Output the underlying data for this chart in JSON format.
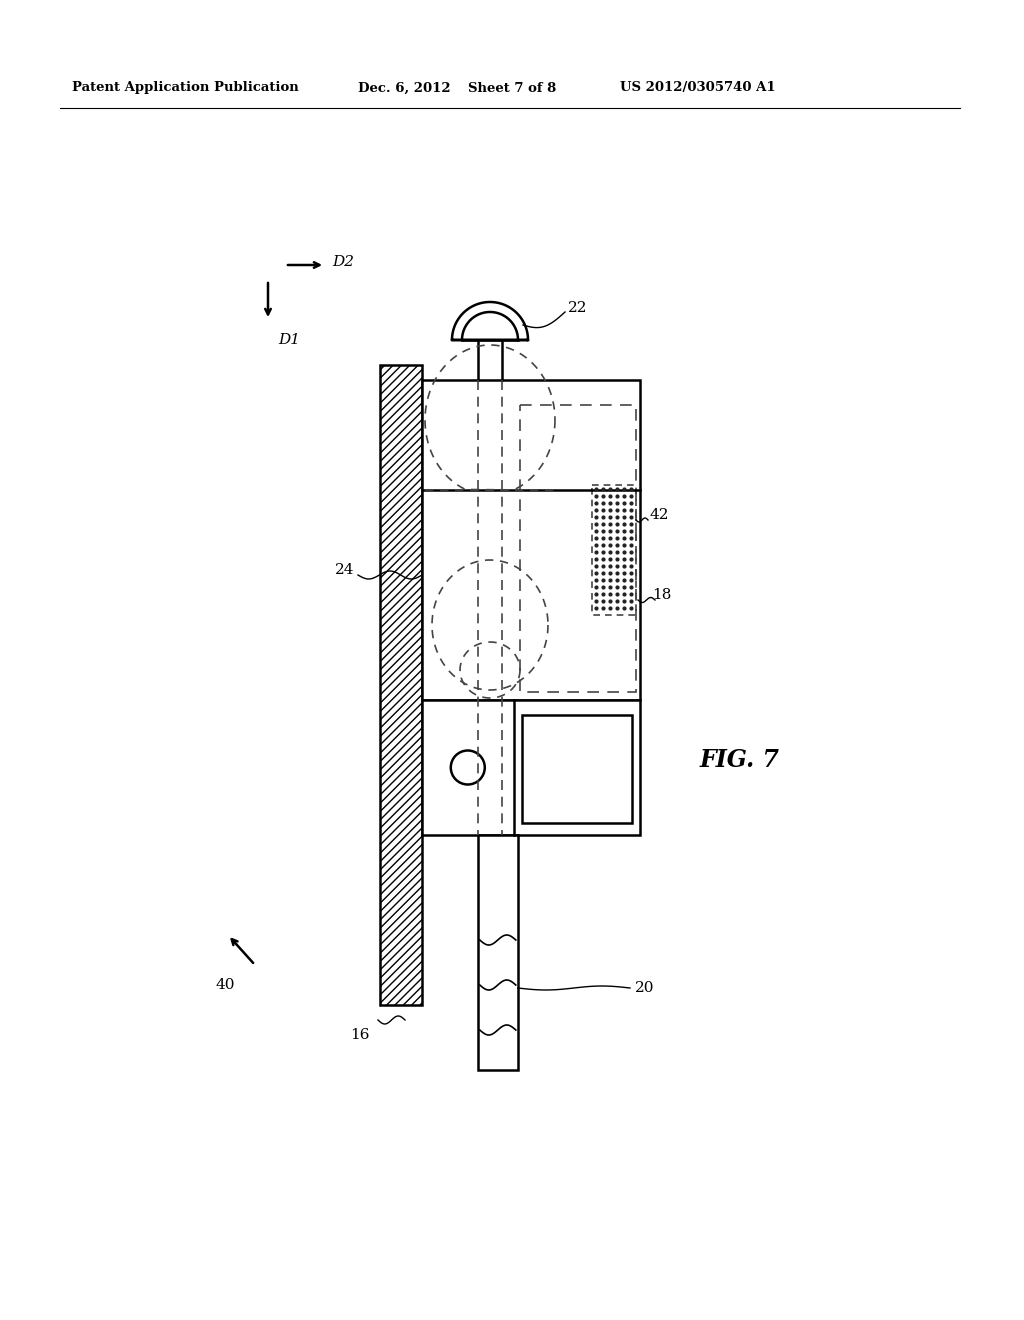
{
  "background_color": "#ffffff",
  "header_text": "Patent Application Publication",
  "header_date": "Dec. 6, 2012",
  "header_sheet": "Sheet 7 of 8",
  "header_patent": "US 2012/0305740 A1",
  "fig_label": "FIG. 7",
  "labels": {
    "D1": "D1",
    "D2": "D2",
    "16": "16",
    "18": "18",
    "20": "20",
    "22": "22",
    "24": "24",
    "40": "40",
    "42": "42"
  },
  "line_color": "#000000",
  "dash_color": "#444444"
}
